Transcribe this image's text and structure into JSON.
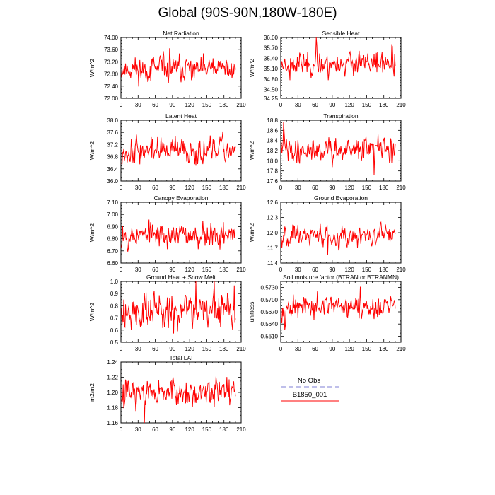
{
  "title": "Global (90S-90N,180W-180E)",
  "colors": {
    "model": "#ff0000",
    "obs": "#9999dd",
    "axis": "#000000"
  },
  "legend": {
    "obs_label": "No Obs",
    "model_label": "B1850_001"
  },
  "chart_data": [
    {
      "type": "line",
      "title": "Net Radiation",
      "ylabel": "W/m^2",
      "xlim": [
        0,
        210
      ],
      "xticks": [
        0,
        30,
        60,
        90,
        120,
        150,
        180,
        210
      ],
      "ylim": [
        72.0,
        74.0
      ],
      "yticks": [
        "72.00",
        "72.40",
        "72.80",
        "73.20",
        "73.60",
        "74.00"
      ],
      "mean": 72.95,
      "amp": 0.25,
      "seed": 11,
      "x_start": 1,
      "x_end": 200,
      "series": [
        {
          "name": "B1850_001"
        }
      ]
    },
    {
      "type": "line",
      "title": "Sensible Heat",
      "ylabel": "W/m^2",
      "xlim": [
        0,
        210
      ],
      "xticks": [
        0,
        30,
        60,
        90,
        120,
        150,
        180,
        210
      ],
      "ylim": [
        34.25,
        36.0
      ],
      "yticks": [
        "34.25",
        "34.50",
        "34.80",
        "35.10",
        "35.40",
        "35.70",
        "36.00"
      ],
      "mean": 35.25,
      "amp": 0.2,
      "seed": 23,
      "x_start": 1,
      "x_end": 200,
      "series": [
        {
          "name": "B1850_001"
        }
      ]
    },
    {
      "type": "line",
      "title": "Latent Heat",
      "ylabel": "W/m^2",
      "xlim": [
        0,
        210
      ],
      "xticks": [
        0,
        30,
        60,
        90,
        120,
        150,
        180,
        210
      ],
      "ylim": [
        36.0,
        38.0
      ],
      "yticks": [
        "36.0",
        "36.4",
        "36.8",
        "37.2",
        "37.6",
        "38.0"
      ],
      "mean": 37.0,
      "amp": 0.25,
      "seed": 37,
      "x_start": 1,
      "x_end": 200,
      "series": [
        {
          "name": "B1850_001"
        }
      ]
    },
    {
      "type": "line",
      "title": "Transpiration",
      "ylabel": "W/m^2",
      "xlim": [
        0,
        210
      ],
      "xticks": [
        0,
        30,
        60,
        90,
        120,
        150,
        180,
        210
      ],
      "ylim": [
        17.6,
        18.8
      ],
      "yticks": [
        "17.6",
        "17.8",
        "18.0",
        "18.2",
        "18.4",
        "18.6",
        "18.8"
      ],
      "mean": 18.22,
      "amp": 0.14,
      "seed": 41,
      "x_start": 1,
      "x_end": 200,
      "series": [
        {
          "name": "B1850_001"
        }
      ]
    },
    {
      "type": "line",
      "title": "Canopy Evaporation",
      "ylabel": "W/m^2",
      "xlim": [
        0,
        210
      ],
      "xticks": [
        0,
        30,
        60,
        90,
        120,
        150,
        180,
        210
      ],
      "ylim": [
        6.6,
        7.1
      ],
      "yticks": [
        "6.60",
        "6.70",
        "6.80",
        "6.90",
        "7.00",
        "7.10"
      ],
      "mean": 6.83,
      "amp": 0.06,
      "seed": 53,
      "x_start": 1,
      "x_end": 200,
      "series": [
        {
          "name": "B1850_001"
        }
      ]
    },
    {
      "type": "line",
      "title": "Ground Evaporation",
      "ylabel": "W/m^2",
      "xlim": [
        0,
        210
      ],
      "xticks": [
        0,
        30,
        60,
        90,
        120,
        150,
        180,
        210
      ],
      "ylim": [
        11.4,
        12.6
      ],
      "yticks": [
        "11.4",
        "11.7",
        "12.0",
        "12.3",
        "12.6"
      ],
      "mean": 11.95,
      "amp": 0.13,
      "seed": 67,
      "x_start": 1,
      "x_end": 200,
      "series": [
        {
          "name": "B1850_001"
        }
      ]
    },
    {
      "type": "line",
      "title": "Ground Heat + Snow Melt",
      "ylabel": "W/m^2",
      "xlim": [
        0,
        210
      ],
      "xticks": [
        0,
        30,
        60,
        90,
        120,
        150,
        180,
        210
      ],
      "ylim": [
        0.5,
        1.0
      ],
      "yticks": [
        "0.5",
        "0.6",
        "0.7",
        "0.8",
        "0.9",
        "1.0"
      ],
      "mean": 0.76,
      "amp": 0.09,
      "seed": 79,
      "x_start": 1,
      "x_end": 200,
      "series": [
        {
          "name": "B1850_001"
        }
      ]
    },
    {
      "type": "line",
      "title": "Soil moisture factor (BTRAN or BTRANMN)",
      "ylabel": "unitless",
      "xlim": [
        0,
        210
      ],
      "xticks": [
        0,
        30,
        60,
        90,
        120,
        150,
        180,
        210
      ],
      "ylim": [
        0.5595,
        0.5745
      ],
      "yticks": [
        "0.5610",
        "0.5640",
        "0.5670",
        "0.5700",
        "0.5730"
      ],
      "mean": 0.568,
      "amp": 0.0017,
      "seed": 97,
      "x_start": 1,
      "x_end": 200,
      "series": [
        {
          "name": "B1850_001"
        }
      ]
    },
    {
      "type": "line",
      "title": "Total LAI",
      "ylabel": "m2/m2",
      "xlim": [
        0,
        210
      ],
      "xticks": [
        0,
        30,
        60,
        90,
        120,
        150,
        180,
        210
      ],
      "ylim": [
        1.16,
        1.24
      ],
      "yticks": [
        "1.16",
        "1.18",
        "1.20",
        "1.22",
        "1.24"
      ],
      "mean": 1.2,
      "amp": 0.011,
      "seed": 113,
      "x_start": 1,
      "x_end": 200,
      "series": [
        {
          "name": "B1850_001"
        }
      ]
    }
  ]
}
